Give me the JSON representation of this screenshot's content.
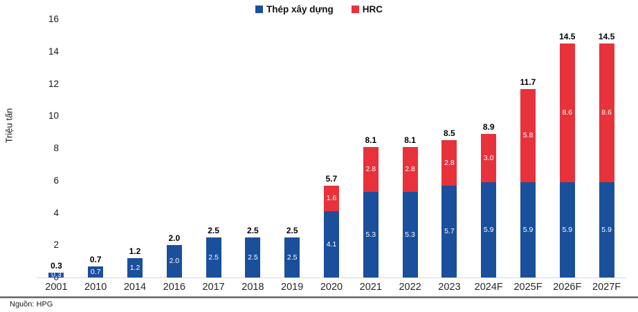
{
  "chart_data": {
    "type": "bar",
    "stacked": true,
    "categories": [
      "2001",
      "2010",
      "2014",
      "2016",
      "2017",
      "2018",
      "2019",
      "2020",
      "2021",
      "2022",
      "2023",
      "2024F",
      "2025F",
      "2026F",
      "2027F"
    ],
    "series": [
      {
        "name": "Thép xây dựng",
        "color": "#1A4F9C",
        "values": [
          0.3,
          0.7,
          1.2,
          2.0,
          2.5,
          2.5,
          2.5,
          4.1,
          5.3,
          5.3,
          5.7,
          5.9,
          5.9,
          5.9,
          5.9
        ]
      },
      {
        "name": "HRC",
        "color": "#E7323B",
        "values": [
          0,
          0,
          0,
          0,
          0,
          0,
          0,
          1.6,
          2.8,
          2.8,
          2.8,
          3.0,
          5.8,
          8.6,
          8.6
        ]
      }
    ],
    "totals": [
      "0.3",
      "0.7",
      "1.2",
      "2.0",
      "2.5",
      "2.5",
      "2.5",
      "5.7",
      "8.1",
      "8.1",
      "8.5",
      "8.9",
      "11.7",
      "14.5",
      "14.5"
    ],
    "title": "",
    "xlabel": "",
    "ylabel": "Triệu tấn",
    "ylim": [
      0,
      16
    ],
    "yticks": [
      0,
      2,
      4,
      6,
      8,
      10,
      12,
      14,
      16
    ],
    "grid": false,
    "legend_position": "top-center"
  },
  "legend": {
    "items": [
      {
        "label": "Thép xây dựng",
        "color": "#1A4F9C"
      },
      {
        "label": "HRC",
        "color": "#E7323B"
      }
    ]
  },
  "source": {
    "text": "Nguồn: HPG"
  }
}
